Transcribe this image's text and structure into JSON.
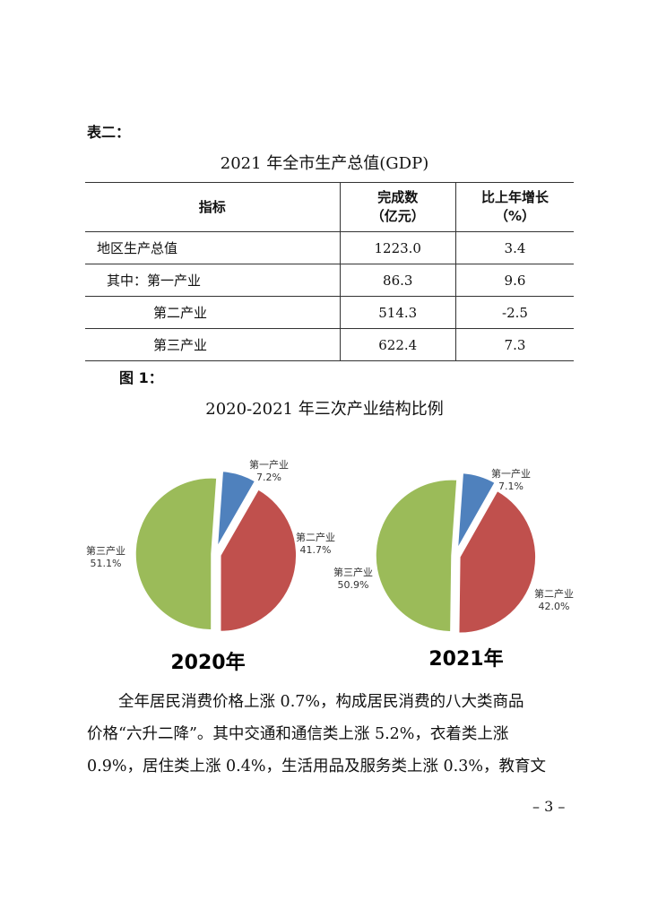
{
  "table_label": "表二：",
  "table_title": "2021 年全市生产总值(GDP)",
  "table": {
    "headers": [
      {
        "line1": "指标",
        "line2": ""
      },
      {
        "line1": "完成数",
        "line2": "（亿元）"
      },
      {
        "line1": "比上年增长",
        "line2": "（%）"
      }
    ],
    "rows": [
      {
        "name": "地区生产总值",
        "value": "1223.0",
        "growth": "3.4"
      },
      {
        "name": "其中：第一产业",
        "value": "86.3",
        "growth": "9.6"
      },
      {
        "name": "第二产业",
        "value": "514.3",
        "growth": "-2.5"
      },
      {
        "name": "第三产业",
        "value": "622.4",
        "growth": "7.3"
      }
    ]
  },
  "figure_label": "图 1：",
  "figure_title": "2020-2021 年三次产业结构比例",
  "colors": {
    "primary": "#4f81bd",
    "secondary": "#c0504d",
    "tertiary": "#9bbb59"
  },
  "chart_data": [
    {
      "type": "pie",
      "title": "2020年",
      "categories": [
        "第一产业",
        "第二产业",
        "第三产业"
      ],
      "values": [
        7.2,
        41.7,
        51.1
      ],
      "value_labels": [
        "7.2%",
        "41.7%",
        "51.1%"
      ]
    },
    {
      "type": "pie",
      "title": "2021年",
      "categories": [
        "第一产业",
        "第二产业",
        "第三产业"
      ],
      "values": [
        7.1,
        42.0,
        50.9
      ],
      "value_labels": [
        "7.1%",
        "42.0%",
        "50.9%"
      ]
    }
  ],
  "paragraph_lines": [
    "全年居民消费价格上涨 0.7%，构成居民消费的八大类商品",
    "价格“六升二降”。其中交通和通信类上涨 5.2%，衣着类上涨",
    "0.9%，居住类上涨 0.4%，生活用品及服务类上涨 0.3%，教育文"
  ],
  "page_number": "– 3 –"
}
